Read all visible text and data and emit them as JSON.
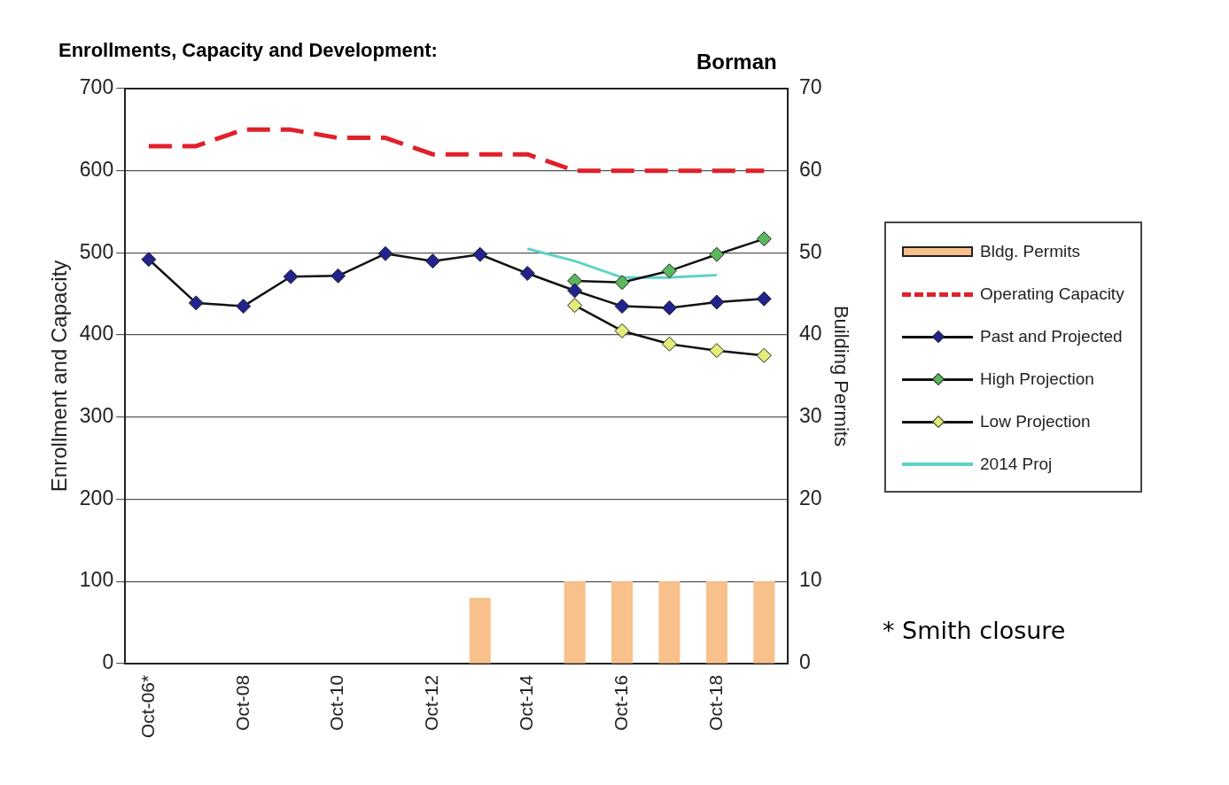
{
  "chart_data": {
    "type": "line",
    "title": "Enrollments, Capacity and Development:",
    "subtitle": "Borman",
    "ylabel": "Enrollment and Capacity",
    "y2label": "Building Permits",
    "categories": [
      "Oct-06*",
      null,
      "Oct-08",
      null,
      "Oct-10",
      null,
      "Oct-12",
      null,
      "Oct-14",
      null,
      "Oct-16",
      null,
      "Oct-18",
      null
    ],
    "series": [
      {
        "name": "Bldg. Permits",
        "type": "bar",
        "axis": "y2",
        "color": "#f8c08a",
        "values": [
          null,
          null,
          null,
          null,
          null,
          null,
          null,
          8,
          null,
          10,
          10,
          10,
          10,
          10
        ]
      },
      {
        "name": "Operating Capacity",
        "color": "#e0202a",
        "line_style": "dashed",
        "marker": "none",
        "values": [
          630,
          630,
          650,
          650,
          640,
          640,
          620,
          620,
          620,
          600,
          600,
          600,
          600,
          600
        ]
      },
      {
        "name": "Past and Projected",
        "color": "#22238c",
        "values": [
          492,
          439,
          435,
          471,
          472,
          499,
          490,
          498,
          475,
          454,
          435,
          433,
          440,
          444
        ]
      },
      {
        "name": "High Projection",
        "color": "#5cb85c",
        "values": [
          null,
          null,
          null,
          null,
          null,
          null,
          null,
          null,
          null,
          466,
          464,
          478,
          498,
          517
        ]
      },
      {
        "name": "Low Projection",
        "color": "#e4ec7a",
        "values": [
          null,
          null,
          null,
          null,
          null,
          null,
          null,
          null,
          null,
          436,
          405,
          389,
          381,
          375
        ]
      },
      {
        "name": "2014 Proj",
        "color": "#5fd3c6",
        "marker": "none",
        "values": [
          null,
          null,
          null,
          null,
          null,
          null,
          null,
          null,
          505,
          490,
          470,
          470,
          473,
          null
        ]
      }
    ],
    "ylim": [
      0,
      700
    ],
    "yticks": [
      0,
      100,
      200,
      300,
      400,
      500,
      600,
      700
    ],
    "y2lim": [
      0,
      70
    ],
    "y2ticks": [
      0,
      10,
      20,
      30,
      40,
      50,
      60,
      70
    ],
    "grid": "y",
    "legend": "right",
    "marker": "diamond",
    "annotations": [
      "* Smith closure"
    ]
  }
}
